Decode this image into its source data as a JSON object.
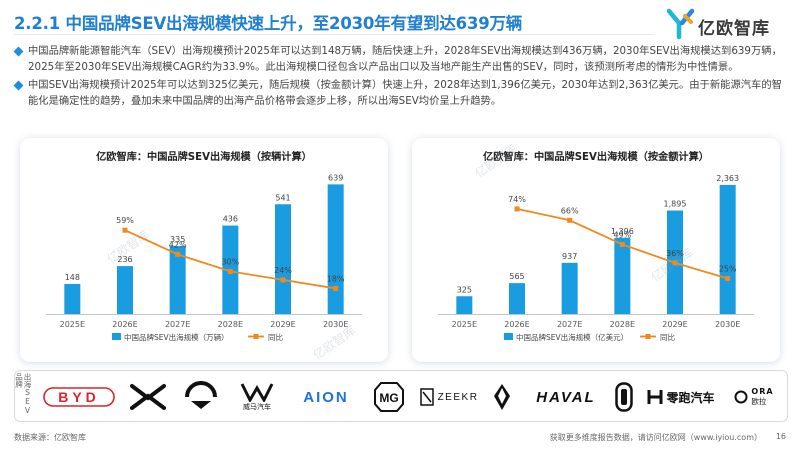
{
  "header": {
    "title": "2.2.1 中国品牌SEV出海规模快速上升，至2030年有望到达639万辆",
    "logo_text": "亿欧智库",
    "logo_icon": "yiou-y-logo-icon"
  },
  "bullets": [
    "中国品牌新能源智能汽车（SEV）出海规模预计2025年可以达到148万辆，随后快速上升，2028年SEV出海规模达到436万辆，2030年SEV出海规模达到639万辆，2025年至2030年SEV出海规模CAGR约为33.9%。此出海规模口径包含以产品出口以及当地产能生产出售的SEV，同时，该预测所考虑的情形为中性情景。",
    "中国SEV出海规模预计2025年可以达到325亿美元，随后规模（按金额计算）快速上升，2028年达到1,396亿美元，2030年达到2,363亿美元。由于新能源汽车的智能化是确定性的趋势，叠加未来中国品牌的出海产品价格带会逐步上移，所以出海SEV均价呈上升趋势。"
  ],
  "watermark": "亿欧智库",
  "colors": {
    "bar": "#1a9ce0",
    "line": "#f08a1c",
    "title": "#1f7fd0"
  },
  "chart_data": [
    {
      "type": "bar",
      "title": "亿欧智库：中国品牌SEV出海规模（按辆计算）",
      "categories": [
        "2025E",
        "2026E",
        "2027E",
        "2028E",
        "2029E",
        "2030E"
      ],
      "series": [
        {
          "name": "中国品牌SEV出海规模（万辆）",
          "type": "bar",
          "values": [
            148,
            236,
            335,
            436,
            541,
            639
          ],
          "labels": [
            "148",
            "236",
            "335",
            "436",
            "541",
            "639"
          ]
        },
        {
          "name": "同比",
          "type": "line",
          "values": [
            null,
            59,
            42,
            30,
            24,
            18
          ],
          "labels": [
            "",
            "59%",
            "42%",
            "30%",
            "24%",
            "18%"
          ]
        }
      ],
      "ylim_bar": [
        0,
        700
      ],
      "ylim_line": [
        0,
        100
      ],
      "legend": "bottom"
    },
    {
      "type": "bar",
      "title": "亿欧智库：中国品牌SEV出海规模（按金额计算）",
      "categories": [
        "2025E",
        "2026E",
        "2027E",
        "2028E",
        "2029E",
        "2030E"
      ],
      "series": [
        {
          "name": "中国品牌SEV出海规模（亿美元）",
          "type": "bar",
          "values": [
            325,
            565,
            937,
            1396,
            1895,
            2363
          ],
          "labels": [
            "325",
            "565",
            "937",
            "1,396",
            "1,895",
            "2,363"
          ]
        },
        {
          "name": "同比",
          "type": "line",
          "values": [
            null,
            74,
            66,
            49,
            36,
            25
          ],
          "labels": [
            "",
            "74%",
            "66%",
            "49%",
            "36%",
            "25%"
          ]
        }
      ],
      "ylim_bar": [
        0,
        2600
      ],
      "ylim_line": [
        0,
        100
      ],
      "legend": "bottom"
    }
  ],
  "brands": {
    "label": "出海SEV品牌",
    "items": [
      {
        "name": "BYD",
        "text": "BYD",
        "color": "#d6272d"
      },
      {
        "name": "xpeng",
        "text": "",
        "color": "#111111"
      },
      {
        "name": "nio",
        "text": "",
        "color": "#111111"
      },
      {
        "name": "weltmeister",
        "text": "威马汽车",
        "color": "#111111"
      },
      {
        "name": "aion",
        "text": "AION",
        "color": "#1d74d6"
      },
      {
        "name": "mg",
        "text": "MG",
        "color": "#111111"
      },
      {
        "name": "zeekr",
        "text": "ZEEKR",
        "color": "#111111"
      },
      {
        "name": "lynk",
        "text": "",
        "color": "#111111"
      },
      {
        "name": "haval",
        "text": "HAVAL",
        "color": "#111111"
      },
      {
        "name": "li-auto",
        "text": "",
        "color": "#111111"
      },
      {
        "name": "leapmotor",
        "text": "零跑汽车",
        "color": "#111111"
      },
      {
        "name": "ora",
        "text": "ORA",
        "sub": "欧拉",
        "color": "#111111"
      }
    ]
  },
  "footer": {
    "source": "数据来源：亿欧智库",
    "more": "获取更多维度报告数据，请访问亿欧网（www.iyiou.com）",
    "page": "16"
  }
}
